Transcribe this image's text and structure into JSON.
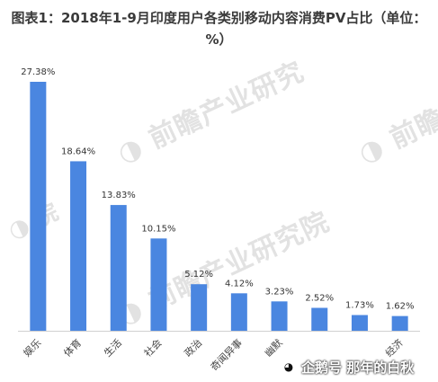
{
  "title": "图表1：2018年1-9月印度用户各类别移动内容消费PV占比（单位：%）",
  "watermarks": [
    {
      "text": "前瞻产业研究",
      "icon": "qianzhan-logo-icon"
    },
    {
      "text": "前瞻产业研究院",
      "icon": "qianzhan-logo-icon"
    },
    {
      "text": "前瞻",
      "icon": "qianzhan-logo-icon"
    },
    {
      "text": "院",
      "icon": "qianzhan-logo-icon"
    }
  ],
  "badge": {
    "icon": "qq-penguin-icon",
    "text": "企鹅号 那年的白秋"
  },
  "chart_data": {
    "type": "bar",
    "title": "图表1：2018年1-9月印度用户各类别移动内容消费PV占比（单位：%）",
    "categories": [
      "娱乐",
      "体育",
      "生活",
      "社会",
      "政治",
      "奇闻异事",
      "幽默",
      "",
      "",
      "经济"
    ],
    "values": [
      27.38,
      18.64,
      13.83,
      10.15,
      5.12,
      4.12,
      3.23,
      2.52,
      1.73,
      1.62
    ],
    "value_labels": [
      "27.38%",
      "18.64%",
      "13.83%",
      "10.15%",
      "5.12%",
      "4.12%",
      "3.23%",
      "2.52%",
      "1.73%",
      "1.62%"
    ],
    "ylim": [
      0,
      30
    ],
    "grid": false,
    "bar_color": "#4a86e0"
  }
}
